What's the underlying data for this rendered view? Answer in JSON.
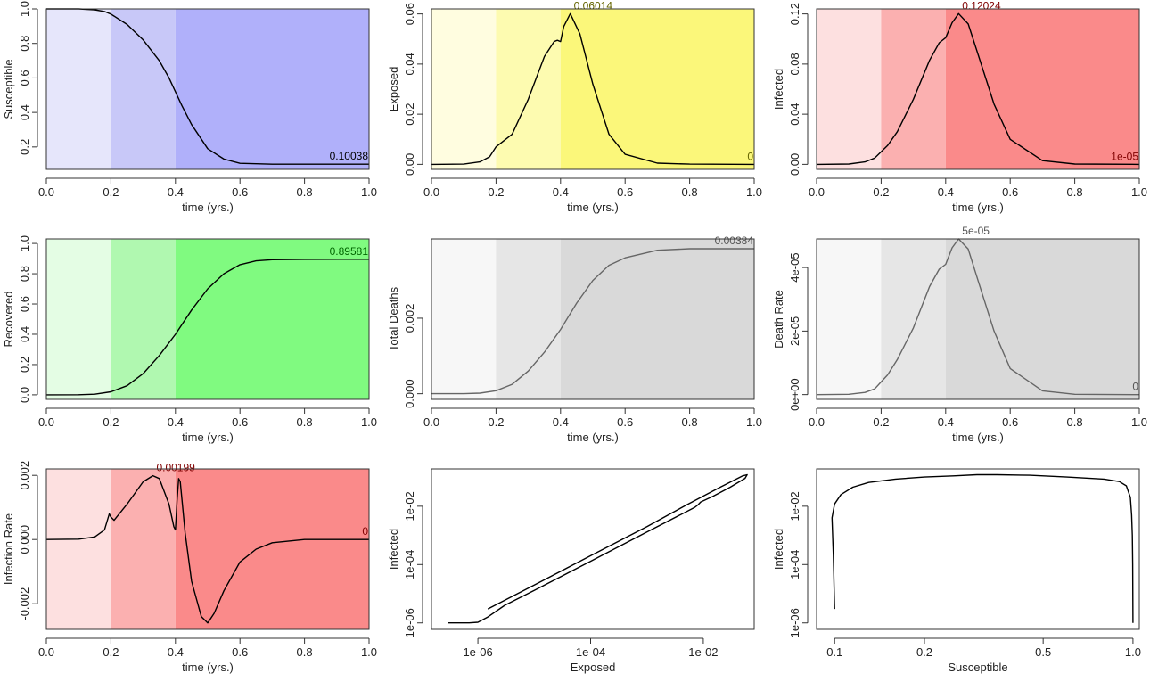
{
  "chart_data": [
    {
      "type": "line",
      "xlabel": "time (yrs.)",
      "ylabel": "Susceptible",
      "xlim": [
        0,
        1
      ],
      "ylim": [
        0.07,
        1.0
      ],
      "xticks": [
        "0.0",
        "0.2",
        "0.4",
        "0.6",
        "0.8",
        "1.0"
      ],
      "yticks": [
        {
          "v": 0.2,
          "label": "0.2"
        },
        {
          "v": 0.4,
          "label": "0.4"
        },
        {
          "v": 0.6,
          "label": "0.6"
        },
        {
          "v": 0.8,
          "label": "0.8"
        },
        {
          "v": 1.0,
          "label": "1.0"
        }
      ],
      "bands": [
        {
          "from": 0,
          "to": 0.2,
          "color": "#e6e6fb"
        },
        {
          "from": 0.2,
          "to": 0.4,
          "color": "#c8c8f8"
        },
        {
          "from": 0.4,
          "to": 1,
          "color": "#b0b0fa"
        }
      ],
      "line_color": "#000000",
      "annotation_color": "#000000",
      "x": [
        0,
        0.1,
        0.15,
        0.18,
        0.2,
        0.25,
        0.3,
        0.35,
        0.38,
        0.4,
        0.42,
        0.45,
        0.5,
        0.55,
        0.6,
        0.7,
        0.8,
        1.0
      ],
      "y": [
        1.0,
        1.0,
        0.995,
        0.985,
        0.97,
        0.91,
        0.82,
        0.7,
        0.6,
        0.52,
        0.44,
        0.33,
        0.19,
        0.13,
        0.105,
        0.1,
        0.1,
        0.1
      ],
      "annotations": [
        {
          "x": 1.0,
          "y": 0.1,
          "text": "0.10038"
        }
      ]
    },
    {
      "type": "line",
      "xlabel": "time (yrs.)",
      "ylabel": "Exposed",
      "xlim": [
        0,
        1
      ],
      "ylim": [
        -0.002,
        0.062
      ],
      "xticks": [
        "0.0",
        "0.2",
        "0.4",
        "0.6",
        "0.8",
        "1.0"
      ],
      "yticks": [
        {
          "v": 0,
          "label": "0.00"
        },
        {
          "v": 0.02,
          "label": "0.02"
        },
        {
          "v": 0.04,
          "label": "0.04"
        },
        {
          "v": 0.06,
          "label": "0.06"
        }
      ],
      "bands": [
        {
          "from": 0,
          "to": 0.2,
          "color": "#fffde0"
        },
        {
          "from": 0.2,
          "to": 0.4,
          "color": "#fdfbb0"
        },
        {
          "from": 0.4,
          "to": 1,
          "color": "#fbf77a"
        }
      ],
      "line_color": "#000000",
      "annotation_color": "#666600",
      "x": [
        0,
        0.1,
        0.15,
        0.18,
        0.2,
        0.21,
        0.25,
        0.3,
        0.35,
        0.38,
        0.39,
        0.4,
        0.41,
        0.43,
        0.46,
        0.5,
        0.55,
        0.6,
        0.7,
        0.8,
        1.0
      ],
      "y": [
        0,
        0.0001,
        0.001,
        0.003,
        0.007,
        0.008,
        0.012,
        0.026,
        0.043,
        0.049,
        0.0495,
        0.049,
        0.055,
        0.0601,
        0.052,
        0.032,
        0.012,
        0.004,
        0.0005,
        0.0001,
        0
      ],
      "annotations": [
        {
          "x": 0.43,
          "y": 0.0601,
          "text": "0.06014"
        },
        {
          "x": 1.0,
          "y": 0,
          "text": "0"
        }
      ]
    },
    {
      "type": "line",
      "xlabel": "time (yrs.)",
      "ylabel": "Infected",
      "xlim": [
        0,
        1
      ],
      "ylim": [
        -0.004,
        0.124
      ],
      "xticks": [
        "0.0",
        "0.2",
        "0.4",
        "0.6",
        "0.8",
        "1.0"
      ],
      "yticks": [
        {
          "v": 0,
          "label": "0.00"
        },
        {
          "v": 0.04,
          "label": "0.04"
        },
        {
          "v": 0.08,
          "label": "0.08"
        },
        {
          "v": 0.12,
          "label": "0.12"
        }
      ],
      "bands": [
        {
          "from": 0,
          "to": 0.2,
          "color": "#fde0e0"
        },
        {
          "from": 0.2,
          "to": 0.4,
          "color": "#fbb0b0"
        },
        {
          "from": 0.4,
          "to": 1,
          "color": "#fa8a8a"
        }
      ],
      "line_color": "#000000",
      "annotation_color": "#800000",
      "x": [
        0,
        0.1,
        0.15,
        0.18,
        0.2,
        0.22,
        0.25,
        0.3,
        0.35,
        0.38,
        0.4,
        0.42,
        0.44,
        0.47,
        0.5,
        0.55,
        0.6,
        0.7,
        0.8,
        1.0
      ],
      "y": [
        0,
        0.0003,
        0.002,
        0.005,
        0.01,
        0.015,
        0.026,
        0.052,
        0.083,
        0.097,
        0.101,
        0.113,
        0.1202,
        0.112,
        0.088,
        0.048,
        0.02,
        0.003,
        0.0003,
        1e-05
      ],
      "annotations": [
        {
          "x": 0.44,
          "y": 0.1202,
          "text": "0.12024"
        },
        {
          "x": 1.0,
          "y": 0,
          "text": "1e-05"
        }
      ]
    },
    {
      "type": "line",
      "xlabel": "time (yrs.)",
      "ylabel": "Recovered",
      "xlim": [
        0,
        1
      ],
      "ylim": [
        -0.03,
        1.03
      ],
      "xticks": [
        "0.0",
        "0.2",
        "0.4",
        "0.6",
        "0.8",
        "1.0"
      ],
      "yticks": [
        {
          "v": 0,
          "label": "0.0"
        },
        {
          "v": 0.2,
          "label": "0.2"
        },
        {
          "v": 0.4,
          "label": "0.4"
        },
        {
          "v": 0.6,
          "label": "0.6"
        },
        {
          "v": 0.8,
          "label": "0.8"
        },
        {
          "v": 1.0,
          "label": "1.0"
        }
      ],
      "bands": [
        {
          "from": 0,
          "to": 0.2,
          "color": "#e4fde4"
        },
        {
          "from": 0.2,
          "to": 0.4,
          "color": "#b0f8b0"
        },
        {
          "from": 0.4,
          "to": 1,
          "color": "#80fa80"
        }
      ],
      "line_color": "#000000",
      "annotation_color": "#006600",
      "x": [
        0,
        0.1,
        0.15,
        0.2,
        0.25,
        0.3,
        0.35,
        0.4,
        0.45,
        0.5,
        0.55,
        0.6,
        0.65,
        0.7,
        0.8,
        1.0
      ],
      "y": [
        0,
        0.0005,
        0.004,
        0.02,
        0.06,
        0.14,
        0.26,
        0.4,
        0.56,
        0.7,
        0.8,
        0.86,
        0.885,
        0.893,
        0.895,
        0.896
      ],
      "annotations": [
        {
          "x": 1.0,
          "y": 0.896,
          "text": "0.89581"
        }
      ]
    },
    {
      "type": "line",
      "xlabel": "time (yrs.)",
      "ylabel": "Total Deaths",
      "xlim": [
        0,
        1
      ],
      "ylim": [
        -0.00015,
        0.0041
      ],
      "xticks": [
        "0.0",
        "0.2",
        "0.4",
        "0.6",
        "0.8",
        "1.0"
      ],
      "yticks": [
        {
          "v": 0,
          "label": "0.000"
        },
        {
          "v": 0.002,
          "label": "0.002"
        }
      ],
      "bands": [
        {
          "from": 0,
          "to": 0.2,
          "color": "#f7f7f7"
        },
        {
          "from": 0.2,
          "to": 0.4,
          "color": "#e6e6e6"
        },
        {
          "from": 0.4,
          "to": 1,
          "color": "#d9d9d9"
        }
      ],
      "line_color": "#666666",
      "annotation_color": "#555555",
      "x": [
        0,
        0.1,
        0.15,
        0.2,
        0.25,
        0.3,
        0.35,
        0.4,
        0.45,
        0.5,
        0.55,
        0.6,
        0.65,
        0.7,
        0.8,
        1.0
      ],
      "y": [
        0,
        2e-06,
        1.5e-05,
        8e-05,
        0.00025,
        0.0006,
        0.0011,
        0.0017,
        0.0024,
        0.003,
        0.0034,
        0.0036,
        0.0037,
        0.0038,
        0.00384,
        0.00384
      ],
      "annotations": [
        {
          "x": 1.0,
          "y": 0.00384,
          "text": "0.00384"
        }
      ]
    },
    {
      "type": "line",
      "xlabel": "time (yrs.)",
      "ylabel": "Death Rate",
      "xlim": [
        0,
        1
      ],
      "ylim": [
        -1.5e-06,
        4.9e-05
      ],
      "xticks": [
        "0.0",
        "0.2",
        "0.4",
        "0.6",
        "0.8",
        "1.0"
      ],
      "yticks": [
        {
          "v": 0,
          "label": "0e+00"
        },
        {
          "v": 2e-05,
          "label": "2e-05"
        },
        {
          "v": 4e-05,
          "label": "4e-05"
        }
      ],
      "bands": [
        {
          "from": 0,
          "to": 0.2,
          "color": "#f7f7f7"
        },
        {
          "from": 0.2,
          "to": 0.4,
          "color": "#e6e6e6"
        },
        {
          "from": 0.4,
          "to": 1,
          "color": "#d9d9d9"
        }
      ],
      "line_color": "#666666",
      "annotation_color": "#555555",
      "x": [
        0,
        0.1,
        0.15,
        0.18,
        0.2,
        0.22,
        0.25,
        0.3,
        0.35,
        0.38,
        0.4,
        0.42,
        0.44,
        0.47,
        0.5,
        0.55,
        0.6,
        0.7,
        0.8,
        1.0
      ],
      "y": [
        0,
        1e-07,
        7e-07,
        1.8e-06,
        4e-06,
        6.2e-06,
        1.1e-05,
        2.1e-05,
        3.4e-05,
        3.95e-05,
        4.1e-05,
        4.62e-05,
        4.9e-05,
        4.58e-05,
        3.6e-05,
        2e-05,
        8.2e-06,
        1.2e-06,
        1e-07,
        0
      ],
      "annotations": [
        {
          "x": 0.44,
          "y": 4.9e-05,
          "text": "5e-05"
        },
        {
          "x": 1.0,
          "y": 0,
          "text": "0"
        }
      ]
    },
    {
      "type": "line",
      "xlabel": "time (yrs.)",
      "ylabel": "Infection Rate",
      "xlim": [
        0,
        1
      ],
      "ylim": [
        -0.0028,
        0.0022
      ],
      "xticks": [
        "0.0",
        "0.2",
        "0.4",
        "0.6",
        "0.8",
        "1.0"
      ],
      "yticks": [
        {
          "v": -0.002,
          "label": "-0.002"
        },
        {
          "v": 0,
          "label": "0.000"
        },
        {
          "v": 0.002,
          "label": "0.002"
        }
      ],
      "bands": [
        {
          "from": 0,
          "to": 0.2,
          "color": "#fde0e0"
        },
        {
          "from": 0.2,
          "to": 0.4,
          "color": "#fbb0b0"
        },
        {
          "from": 0.4,
          "to": 1,
          "color": "#fa8a8a"
        }
      ],
      "line_color": "#000000",
      "annotation_color": "#800000",
      "x": [
        0,
        0.1,
        0.15,
        0.18,
        0.195,
        0.2,
        0.21,
        0.25,
        0.3,
        0.33,
        0.35,
        0.38,
        0.395,
        0.4,
        0.405,
        0.41,
        0.415,
        0.43,
        0.45,
        0.48,
        0.5,
        0.52,
        0.55,
        0.6,
        0.65,
        0.7,
        0.8,
        1.0
      ],
      "y": [
        0,
        1e-05,
        8e-05,
        0.0003,
        0.0008,
        0.0007,
        0.0006,
        0.0011,
        0.0018,
        0.00199,
        0.0019,
        0.0011,
        0.0004,
        0.0003,
        0.0012,
        0.0019,
        0.0018,
        0.0002,
        -0.0013,
        -0.0024,
        -0.0026,
        -0.0023,
        -0.0016,
        -0.0007,
        -0.0003,
        -0.0001,
        0,
        0
      ],
      "annotations": [
        {
          "x": 0.33,
          "y": 0.00199,
          "text": "0.00199"
        },
        {
          "x": 1.0,
          "y": 0,
          "text": "0"
        }
      ]
    },
    {
      "type": "line",
      "xlabel": "Exposed",
      "ylabel": "Infected",
      "xscale": "log",
      "yscale": "log",
      "xlim": [
        1.5e-07,
        0.08
      ],
      "ylim": [
        6e-07,
        0.19
      ],
      "xticks": [
        {
          "v": 1e-06,
          "label": "1e-06"
        },
        {
          "v": 0.0001,
          "label": "1e-04"
        },
        {
          "v": 0.01,
          "label": "1e-02"
        }
      ],
      "yticks": [
        {
          "v": 1e-06,
          "label": "1e-06"
        },
        {
          "v": 0.0001,
          "label": "1e-04"
        },
        {
          "v": 0.01,
          "label": "1e-02"
        }
      ],
      "bands": [],
      "line_color": "#000000",
      "annotation_color": "#000000",
      "x": [
        3e-07,
        7e-07,
        1e-06,
        1.5e-06,
        3e-06,
        1e-05,
        0.0001,
        0.001,
        0.007,
        0.008,
        0.009,
        0.015,
        0.03,
        0.055,
        0.06,
        0.05,
        0.02,
        0.005,
        0.001,
        0.0001,
        1e-05,
        1.5e-06
      ],
      "y": [
        1e-06,
        1e-06,
        1.05e-06,
        1.6e-06,
        4e-06,
        1.3e-05,
        0.00013,
        0.0013,
        0.009,
        0.011,
        0.014,
        0.022,
        0.045,
        0.09,
        0.12,
        0.11,
        0.045,
        0.011,
        0.002,
        0.0002,
        2e-05,
        3e-06
      ],
      "annotations": []
    },
    {
      "type": "line",
      "xlabel": "Susceptible",
      "ylabel": "Infected",
      "xscale": "log",
      "yscale": "log",
      "xlim": [
        0.087,
        1.05
      ],
      "ylim": [
        6e-07,
        0.19
      ],
      "xticks": [
        {
          "v": 0.1,
          "label": "0.1"
        },
        {
          "v": 0.2,
          "label": "0.2"
        },
        {
          "v": 0.5,
          "label": "0.5"
        },
        {
          "v": 1.0,
          "label": "1.0"
        }
      ],
      "yticks": [
        {
          "v": 1e-06,
          "label": "1e-06"
        },
        {
          "v": 0.0001,
          "label": "1e-04"
        },
        {
          "v": 0.01,
          "label": "1e-02"
        }
      ],
      "bands": [],
      "line_color": "#000000",
      "annotation_color": "#000000",
      "x": [
        0.1,
        0.099,
        0.098,
        0.1,
        0.105,
        0.115,
        0.13,
        0.16,
        0.2,
        0.25,
        0.3,
        0.35,
        0.45,
        0.6,
        0.8,
        0.9,
        0.95,
        0.98,
        0.99,
        0.995,
        0.998,
        1.0
      ],
      "y": [
        3e-06,
        0.0002,
        0.004,
        0.012,
        0.025,
        0.045,
        0.065,
        0.085,
        0.1,
        0.11,
        0.12,
        0.12,
        0.115,
        0.1,
        0.085,
        0.07,
        0.05,
        0.02,
        0.005,
        0.001,
        0.0001,
        1e-06
      ],
      "annotations": []
    }
  ]
}
